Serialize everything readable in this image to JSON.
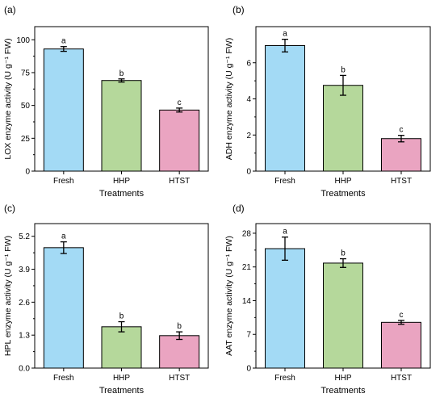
{
  "chart_data": [
    {
      "panel_label": "(a)",
      "type": "bar",
      "categories": [
        "Fresh",
        "HHP",
        "HTST"
      ],
      "values": [
        93,
        69,
        46.5
      ],
      "errors": [
        1.8,
        1.2,
        1.5
      ],
      "letters": [
        "a",
        "b",
        "c"
      ],
      "colors": [
        "#a3daf5",
        "#b5d89b",
        "#eaa4c1"
      ],
      "xlabel": "Treatments",
      "ylabel": "LOX enzyme activity (U g⁻¹ FW)",
      "ylim": [
        0,
        110
      ],
      "yticks": [
        0,
        25,
        50,
        75,
        100
      ]
    },
    {
      "panel_label": "(b)",
      "type": "bar",
      "categories": [
        "Fresh",
        "HHP",
        "HTST"
      ],
      "values": [
        6.95,
        4.75,
        1.8
      ],
      "errors": [
        0.35,
        0.55,
        0.18
      ],
      "letters": [
        "a",
        "b",
        "c"
      ],
      "colors": [
        "#a3daf5",
        "#b5d89b",
        "#eaa4c1"
      ],
      "xlabel": "Treatments",
      "ylabel": "ADH enzyme activity (U g⁻¹ FW)",
      "ylim": [
        0,
        8
      ],
      "yticks": [
        0,
        2,
        4,
        6
      ]
    },
    {
      "panel_label": "(c)",
      "type": "bar",
      "categories": [
        "Fresh",
        "HHP",
        "HTST"
      ],
      "values": [
        4.75,
        1.63,
        1.28
      ],
      "errors": [
        0.23,
        0.2,
        0.15
      ],
      "letters": [
        "a",
        "b",
        "b"
      ],
      "colors": [
        "#a3daf5",
        "#b5d89b",
        "#eaa4c1"
      ],
      "xlabel": "Treatments",
      "ylabel": "HPL enzyme activity (U g⁻¹ FW)",
      "ylim": [
        0,
        5.7
      ],
      "yticks": [
        0.0,
        1.3,
        2.6,
        3.9,
        5.2
      ],
      "tick_decimals": 1
    },
    {
      "panel_label": "(d)",
      "type": "bar",
      "categories": [
        "Fresh",
        "HHP",
        "HTST"
      ],
      "values": [
        24.8,
        21.8,
        9.5
      ],
      "errors": [
        2.4,
        0.9,
        0.4
      ],
      "letters": [
        "a",
        "b",
        "c"
      ],
      "colors": [
        "#a3daf5",
        "#b5d89b",
        "#eaa4c1"
      ],
      "xlabel": "Treatments",
      "ylabel": "AAT enzyme activity (U g⁻¹ FW)",
      "ylim": [
        0,
        30
      ],
      "yticks": [
        0,
        7,
        14,
        21,
        28
      ]
    }
  ]
}
